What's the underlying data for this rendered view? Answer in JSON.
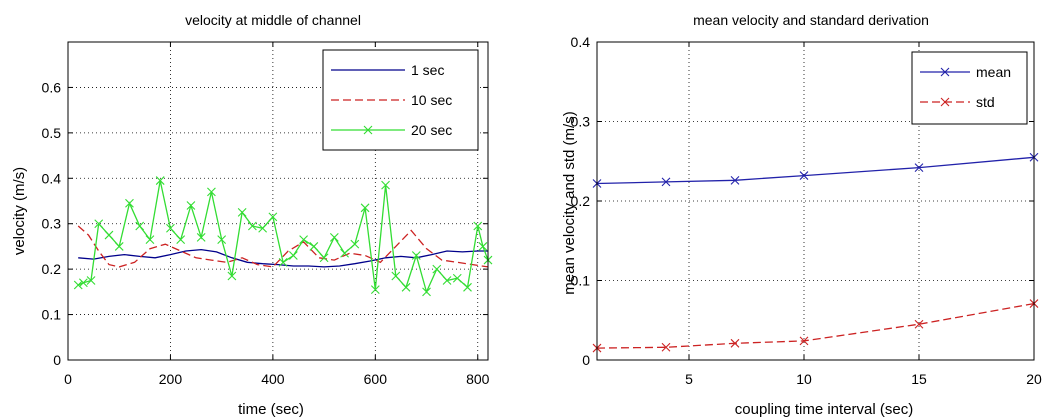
{
  "chart_data": [
    {
      "type": "line",
      "title": "velocity at middle of channel",
      "xlabel": "time (sec)",
      "ylabel": "velocity (m/s)",
      "xlim": [
        0,
        820
      ],
      "ylim": [
        0,
        0.7
      ],
      "xticks": [
        0,
        200,
        400,
        600,
        800
      ],
      "yticks": [
        0,
        0.1,
        0.2,
        0.3,
        0.4,
        0.5,
        0.6
      ],
      "xtick_labels": [
        "0",
        "200",
        "400",
        "600",
        "800"
      ],
      "ytick_labels": [
        "0",
        "0.1",
        "0.2",
        "0.3",
        "0.4",
        "0.5",
        "0.6"
      ],
      "grid": true,
      "legend_position": "top-right",
      "series": [
        {
          "name": "1 sec",
          "color": "#00008b",
          "dash": "solid",
          "marker": "none",
          "x": [
            20,
            50,
            80,
            110,
            140,
            170,
            200,
            230,
            260,
            290,
            320,
            350,
            380,
            410,
            440,
            470,
            500,
            530,
            560,
            590,
            620,
            650,
            680,
            710,
            740,
            770,
            800,
            820
          ],
          "y": [
            0.225,
            0.222,
            0.228,
            0.232,
            0.228,
            0.225,
            0.232,
            0.24,
            0.243,
            0.238,
            0.225,
            0.215,
            0.212,
            0.21,
            0.207,
            0.207,
            0.205,
            0.207,
            0.212,
            0.218,
            0.225,
            0.228,
            0.225,
            0.232,
            0.24,
            0.238,
            0.24,
            0.24
          ]
        },
        {
          "name": "10 sec",
          "color": "#cc2222",
          "dash": "dashed",
          "marker": "none",
          "x": [
            20,
            40,
            60,
            80,
            100,
            130,
            160,
            190,
            220,
            250,
            280,
            310,
            340,
            370,
            400,
            430,
            460,
            490,
            520,
            550,
            580,
            610,
            640,
            670,
            700,
            730,
            760,
            790,
            820
          ],
          "y": [
            0.295,
            0.275,
            0.24,
            0.21,
            0.205,
            0.215,
            0.245,
            0.255,
            0.24,
            0.225,
            0.22,
            0.215,
            0.225,
            0.21,
            0.205,
            0.24,
            0.26,
            0.225,
            0.22,
            0.235,
            0.23,
            0.215,
            0.25,
            0.285,
            0.245,
            0.22,
            0.215,
            0.21,
            0.205
          ]
        },
        {
          "name": "20 sec",
          "color": "#33dd33",
          "dash": "solid",
          "marker": "x",
          "x": [
            20,
            30,
            45,
            60,
            80,
            100,
            120,
            140,
            160,
            180,
            200,
            220,
            240,
            260,
            280,
            300,
            320,
            340,
            360,
            380,
            400,
            420,
            440,
            460,
            480,
            500,
            520,
            540,
            560,
            580,
            600,
            620,
            640,
            660,
            680,
            700,
            720,
            740,
            760,
            780,
            800,
            810,
            820
          ],
          "y": [
            0.165,
            0.17,
            0.175,
            0.3,
            0.275,
            0.25,
            0.345,
            0.295,
            0.265,
            0.395,
            0.29,
            0.265,
            0.34,
            0.27,
            0.37,
            0.265,
            0.185,
            0.325,
            0.295,
            0.29,
            0.315,
            0.215,
            0.23,
            0.265,
            0.25,
            0.225,
            0.27,
            0.235,
            0.255,
            0.335,
            0.155,
            0.385,
            0.185,
            0.16,
            0.23,
            0.15,
            0.2,
            0.175,
            0.18,
            0.16,
            0.295,
            0.25,
            0.22
          ]
        }
      ]
    },
    {
      "type": "line",
      "title": "mean velocity and standard derivation",
      "xlabel": "coupling time interval (sec)",
      "ylabel": "mean velocity and std (m/s)",
      "xlim": [
        1,
        20
      ],
      "ylim": [
        0,
        0.4
      ],
      "xticks": [
        5,
        10,
        15,
        20
      ],
      "yticks": [
        0,
        0.1,
        0.2,
        0.3,
        0.4
      ],
      "xtick_labels": [
        "5",
        "10",
        "15",
        "20"
      ],
      "ytick_labels": [
        "0",
        "0.1",
        "0.2",
        "0.3",
        "0.4"
      ],
      "grid": true,
      "legend_position": "top-right",
      "series": [
        {
          "name": "mean",
          "color": "#2222aa",
          "dash": "solid",
          "marker": "x",
          "x": [
            1,
            4,
            7,
            10,
            15,
            20
          ],
          "y": [
            0.222,
            0.224,
            0.226,
            0.232,
            0.242,
            0.255
          ]
        },
        {
          "name": "std",
          "color": "#cc2222",
          "dash": "dashed",
          "marker": "x",
          "x": [
            1,
            4,
            7,
            10,
            15,
            20
          ],
          "y": [
            0.015,
            0.016,
            0.021,
            0.024,
            0.045,
            0.071
          ]
        }
      ]
    }
  ]
}
